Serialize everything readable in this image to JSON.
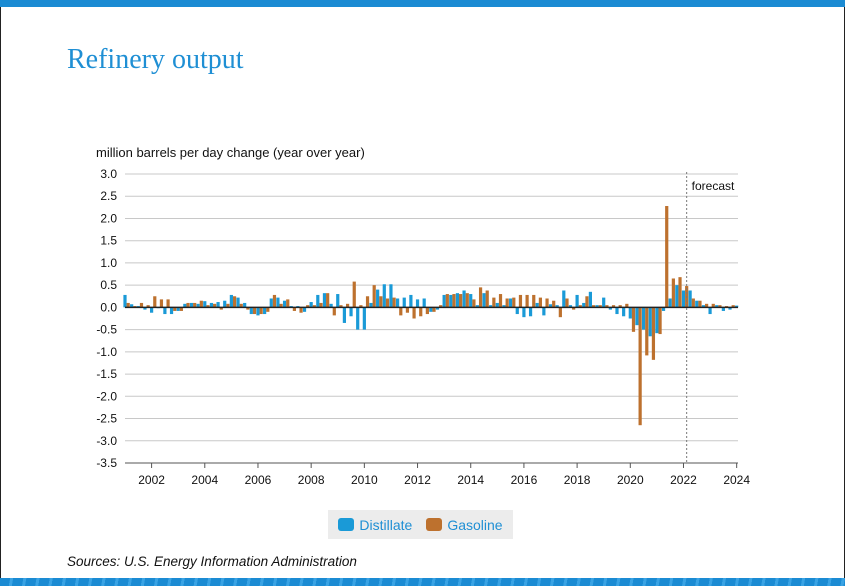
{
  "page": {
    "title": "Refinery output",
    "source": "Sources: U.S. Energy Information Administration"
  },
  "chart_data": {
    "type": "bar",
    "ylabel": "million barrels per day change (year over year)",
    "ylim": [
      -3.5,
      3.0
    ],
    "yticks": [
      3.0,
      2.5,
      2.0,
      1.5,
      1.0,
      0.5,
      0.0,
      -0.5,
      -1.0,
      -1.5,
      -2.0,
      -2.5,
      -3.0,
      -3.5
    ],
    "ytick_labels": [
      "3.0",
      "2.5",
      "2.0",
      "1.5",
      "1.0",
      "0.5",
      "0.0",
      "-0.5",
      "-1.0",
      "-1.5",
      "-2.0",
      "-2.5",
      "-3.0",
      "-3.5"
    ],
    "xlim": [
      2001.0,
      2024.05
    ],
    "xticks": [
      2002,
      2004,
      2006,
      2008,
      2010,
      2012,
      2014,
      2016,
      2018,
      2020,
      2022,
      2024
    ],
    "xtick_labels": [
      "2002",
      "2004",
      "2006",
      "2008",
      "2010",
      "2012",
      "2014",
      "2016",
      "2018",
      "2020",
      "2022",
      "2024"
    ],
    "grid": true,
    "forecast_start": 2022.12,
    "forecast_label": "forecast",
    "legend_position": "bottom-center",
    "colors": {
      "Distillate": "#1a9ad7",
      "Gasoline": "#bd712e",
      "forecast_line": "#777777"
    },
    "series": [
      {
        "name": "Distillate",
        "x": [
          2001.0,
          2001.25,
          2001.5,
          2001.75,
          2002.0,
          2002.25,
          2002.5,
          2002.75,
          2003.0,
          2003.25,
          2003.5,
          2003.75,
          2004.0,
          2004.25,
          2004.5,
          2004.75,
          2005.0,
          2005.25,
          2005.5,
          2005.75,
          2006.0,
          2006.25,
          2006.5,
          2006.75,
          2007.0,
          2007.25,
          2007.5,
          2007.75,
          2008.0,
          2008.25,
          2008.5,
          2008.75,
          2009.0,
          2009.25,
          2009.5,
          2009.75,
          2010.0,
          2010.25,
          2010.5,
          2010.75,
          2011.0,
          2011.25,
          2011.5,
          2011.75,
          2012.0,
          2012.25,
          2012.5,
          2012.75,
          2013.0,
          2013.25,
          2013.5,
          2013.75,
          2014.0,
          2014.25,
          2014.5,
          2014.75,
          2015.0,
          2015.25,
          2015.5,
          2015.75,
          2016.0,
          2016.25,
          2016.5,
          2016.75,
          2017.0,
          2017.25,
          2017.5,
          2017.75,
          2018.0,
          2018.25,
          2018.5,
          2018.75,
          2019.0,
          2019.25,
          2019.5,
          2019.75,
          2020.0,
          2020.25,
          2020.5,
          2020.75,
          2021.0,
          2021.25,
          2021.5,
          2021.75,
          2022.0,
          2022.25,
          2022.5,
          2022.75,
          2023.0,
          2023.25,
          2023.5,
          2023.75,
          2024.0
        ],
        "values": [
          0.28,
          0.07,
          0.03,
          -0.05,
          -0.12,
          0.0,
          -0.15,
          -0.15,
          -0.08,
          0.08,
          0.1,
          0.08,
          0.14,
          0.1,
          0.12,
          0.15,
          0.28,
          0.22,
          0.1,
          -0.15,
          -0.18,
          -0.15,
          0.2,
          0.22,
          0.15,
          0.03,
          0.03,
          -0.1,
          0.12,
          0.28,
          0.32,
          0.08,
          0.3,
          -0.35,
          -0.2,
          -0.5,
          -0.5,
          0.1,
          0.4,
          0.52,
          0.52,
          0.2,
          0.22,
          0.28,
          0.18,
          0.2,
          -0.1,
          -0.05,
          0.28,
          0.28,
          0.32,
          0.38,
          0.3,
          0.05,
          0.32,
          0.05,
          0.1,
          0.05,
          0.2,
          -0.15,
          -0.22,
          -0.2,
          0.1,
          -0.18,
          0.07,
          0.05,
          0.38,
          0.05,
          0.28,
          0.1,
          0.35,
          0.05,
          0.22,
          -0.05,
          -0.15,
          -0.2,
          -0.25,
          -0.4,
          -0.5,
          -0.65,
          -0.58,
          -0.08,
          0.2,
          0.5,
          0.38,
          0.38,
          0.15,
          0.05,
          -0.15,
          0.05,
          -0.08,
          -0.05,
          0.04
        ]
      },
      {
        "name": "Gasoline",
        "x": [
          2001.12,
          2001.37,
          2001.62,
          2001.87,
          2002.12,
          2002.37,
          2002.62,
          2002.87,
          2003.12,
          2003.37,
          2003.62,
          2003.87,
          2004.12,
          2004.37,
          2004.62,
          2004.87,
          2005.12,
          2005.37,
          2005.62,
          2005.87,
          2006.12,
          2006.37,
          2006.62,
          2006.87,
          2007.12,
          2007.37,
          2007.62,
          2007.87,
          2008.12,
          2008.37,
          2008.62,
          2008.87,
          2009.12,
          2009.37,
          2009.62,
          2009.87,
          2010.12,
          2010.37,
          2010.62,
          2010.87,
          2011.12,
          2011.37,
          2011.62,
          2011.87,
          2012.12,
          2012.37,
          2012.62,
          2012.87,
          2013.12,
          2013.37,
          2013.62,
          2013.87,
          2014.12,
          2014.37,
          2014.62,
          2014.87,
          2015.12,
          2015.37,
          2015.62,
          2015.87,
          2016.12,
          2016.37,
          2016.62,
          2016.87,
          2017.12,
          2017.37,
          2017.62,
          2017.87,
          2018.12,
          2018.37,
          2018.62,
          2018.87,
          2019.12,
          2019.37,
          2019.62,
          2019.87,
          2020.12,
          2020.37,
          2020.62,
          2020.87,
          2021.12,
          2021.37,
          2021.62,
          2021.87,
          2022.12,
          2022.37,
          2022.62,
          2022.87,
          2023.12,
          2023.37,
          2023.62,
          2023.87
        ],
        "values": [
          0.1,
          0.03,
          0.1,
          0.05,
          0.25,
          0.18,
          0.18,
          -0.08,
          -0.08,
          0.1,
          0.1,
          0.15,
          0.05,
          0.08,
          -0.05,
          0.08,
          0.25,
          0.08,
          -0.05,
          -0.15,
          -0.15,
          -0.1,
          0.28,
          0.08,
          0.18,
          -0.08,
          -0.12,
          0.05,
          0.05,
          0.1,
          0.32,
          -0.18,
          0.05,
          0.08,
          0.58,
          0.05,
          0.25,
          0.5,
          0.25,
          0.2,
          0.22,
          -0.18,
          -0.12,
          -0.25,
          -0.2,
          -0.15,
          -0.1,
          0.05,
          0.3,
          0.3,
          0.3,
          0.32,
          0.18,
          0.45,
          0.38,
          0.22,
          0.3,
          0.2,
          0.22,
          0.28,
          0.28,
          0.28,
          0.22,
          0.2,
          0.15,
          -0.22,
          0.2,
          -0.05,
          0.05,
          0.25,
          0.05,
          0.05,
          0.05,
          0.05,
          0.05,
          0.08,
          -0.55,
          -2.65,
          -1.08,
          -1.18,
          -0.6,
          2.28,
          0.65,
          0.68,
          0.48,
          0.2,
          0.15,
          0.08,
          0.08,
          0.05,
          0.03,
          0.05
        ]
      }
    ]
  }
}
